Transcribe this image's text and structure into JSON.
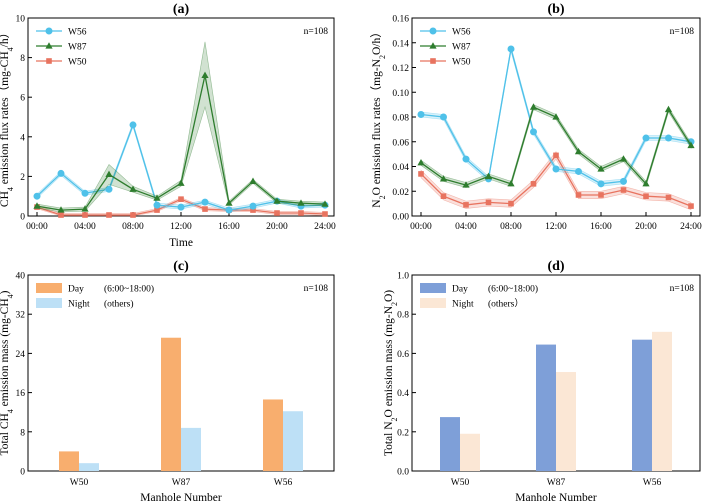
{
  "colors": {
    "W56": "#4fc1e9",
    "W87": "#2e7d2e",
    "W50": "#e8735f",
    "day_a": "#f8ae6e",
    "night_a": "#bde0f6",
    "day_b": "#7e9fd8",
    "night_b": "#fbe7d5"
  },
  "chart_data": [
    {
      "type": "line",
      "panel": "(a)",
      "note": "n=108",
      "xlabel": "Time",
      "ylabel_parts": [
        "CH",
        "4",
        " emission flux rates（mg-CH",
        "4",
        "/h）"
      ],
      "x": [
        0,
        2,
        4,
        6,
        8,
        10,
        12,
        14,
        16,
        18,
        20,
        22,
        24
      ],
      "xticks": [
        0,
        4,
        8,
        12,
        16,
        20,
        24
      ],
      "xtick_labels": [
        "00:00",
        "04:00",
        "08:00",
        "12:00",
        "16:00",
        "20:00",
        "24:00"
      ],
      "ylim": [
        0,
        10
      ],
      "yticks": [
        0,
        2,
        4,
        6,
        8,
        10
      ],
      "series": [
        {
          "name": "W56",
          "marker": "circle",
          "values": [
            1.0,
            2.15,
            1.15,
            1.35,
            4.6,
            0.55,
            0.45,
            0.7,
            0.3,
            0.5,
            0.75,
            0.5,
            0.55
          ],
          "band": 0.1
        },
        {
          "name": "W87",
          "marker": "triangle",
          "values": [
            0.5,
            0.3,
            0.35,
            2.1,
            1.35,
            0.9,
            1.65,
            7.1,
            0.65,
            1.75,
            0.75,
            0.65,
            0.6
          ],
          "band_upper": [
            0.6,
            0.4,
            0.45,
            2.6,
            1.5,
            1.0,
            1.8,
            8.8,
            0.75,
            1.85,
            0.85,
            0.75,
            0.7
          ],
          "band_lower": [
            0.4,
            0.2,
            0.25,
            1.6,
            1.2,
            0.8,
            1.5,
            5.5,
            0.55,
            1.65,
            0.65,
            0.55,
            0.5
          ]
        },
        {
          "name": "W50",
          "marker": "square",
          "values": [
            0.45,
            0.05,
            0.05,
            0.05,
            0.05,
            0.3,
            0.85,
            0.35,
            0.3,
            0.3,
            0.15,
            0.15,
            0.1
          ],
          "band": 0.08
        }
      ]
    },
    {
      "type": "line",
      "panel": "(b)",
      "note": "n=108",
      "xlabel": "",
      "ylabel_parts": [
        "N",
        "2",
        "O emission flux rates（mg-N",
        "2",
        "O/h）"
      ],
      "x": [
        0,
        2,
        4,
        6,
        8,
        10,
        12,
        14,
        16,
        18,
        20,
        22,
        24
      ],
      "xticks": [
        0,
        4,
        8,
        12,
        16,
        20,
        24
      ],
      "xtick_labels": [
        "00:00",
        "04:00",
        "08:00",
        "12:00",
        "16:00",
        "20:00",
        "24:00"
      ],
      "ylim": [
        0,
        0.16
      ],
      "yticks": [
        0,
        0.02,
        0.04,
        0.06,
        0.08,
        0.1,
        0.12,
        0.14,
        0.16
      ],
      "ytick_labels": [
        "0.00",
        "0.02",
        "0.04",
        "0.06",
        "0.08",
        "0.10",
        "0.12",
        "0.14",
        "0.16"
      ],
      "series": [
        {
          "name": "W56",
          "marker": "circle",
          "values": [
            0.082,
            0.08,
            0.046,
            0.03,
            0.135,
            0.068,
            0.038,
            0.036,
            0.026,
            0.028,
            0.063,
            0.063,
            0.06
          ],
          "band": 0.002
        },
        {
          "name": "W87",
          "marker": "triangle",
          "values": [
            0.043,
            0.03,
            0.025,
            0.032,
            0.026,
            0.088,
            0.08,
            0.052,
            0.038,
            0.046,
            0.026,
            0.086,
            0.057
          ],
          "band": 0.002
        },
        {
          "name": "W50",
          "marker": "square",
          "values": [
            0.034,
            0.016,
            0.009,
            0.011,
            0.01,
            0.026,
            0.049,
            0.017,
            0.017,
            0.021,
            0.016,
            0.015,
            0.008
          ],
          "band": 0.003
        }
      ]
    },
    {
      "type": "bar",
      "panel": "(c)",
      "note": "n=108",
      "xlabel": "Manhole Number",
      "ylabel_parts": [
        "Total CH",
        "4",
        " emission mass (mg-CH",
        "4",
        ")"
      ],
      "categories": [
        "W50",
        "W87",
        "W56"
      ],
      "ylim": [
        0,
        40
      ],
      "yticks": [
        0,
        8,
        16,
        24,
        32,
        40
      ],
      "series": [
        {
          "name": "Day",
          "legend_suffix": "(6:00~18:00)",
          "values": [
            4.0,
            27.2,
            14.6
          ]
        },
        {
          "name": "Night",
          "legend_suffix": "(others)",
          "values": [
            1.6,
            8.8,
            12.2
          ]
        }
      ]
    },
    {
      "type": "bar",
      "panel": "(d)",
      "note": "n=108",
      "xlabel": "Manhole Number",
      "ylabel_parts": [
        "Total N",
        "2",
        "O emission mass (mg-N",
        "2",
        "O)"
      ],
      "categories": [
        "W50",
        "W87",
        "W56"
      ],
      "ylim": [
        0,
        1.0
      ],
      "yticks": [
        0,
        0.2,
        0.4,
        0.6,
        0.8,
        1.0
      ],
      "ytick_labels": [
        "0.0",
        "0.2",
        "0.4",
        "0.6",
        "0.8",
        "1.0"
      ],
      "series": [
        {
          "name": "Day",
          "legend_suffix": "(6:00~18:00)",
          "values": [
            0.275,
            0.645,
            0.67
          ]
        },
        {
          "name": "Night",
          "legend_suffix": "(others）",
          "values": [
            0.19,
            0.505,
            0.71
          ]
        }
      ]
    }
  ]
}
